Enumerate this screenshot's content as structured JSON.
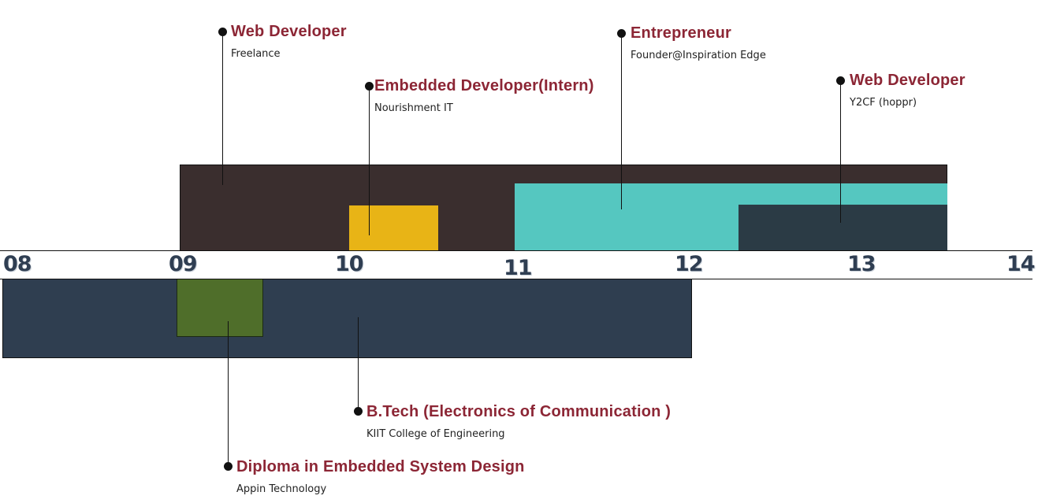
{
  "axis": {
    "ticks": [
      "08",
      "09",
      "10",
      "11",
      "12",
      "13",
      "14"
    ]
  },
  "colors": {
    "work_base": "#3a2e2e",
    "intern": "#e8b416",
    "entrepreneur": "#55c7c0",
    "y2cf": "#2b3b45",
    "btech": "#2f3e50",
    "diploma": "#4f6e2a",
    "title": "#8c2635"
  },
  "experience": [
    {
      "title": "Web Developer",
      "subtitle": "Freelance"
    },
    {
      "title": "Embedded Developer(Intern)",
      "subtitle": "Nourishment  IT"
    },
    {
      "title": "Entrepreneur",
      "subtitle": "Founder@Inspiration Edge"
    },
    {
      "title": "Web Developer",
      "subtitle": "Y2CF (hoppr)"
    }
  ],
  "education": [
    {
      "title": "B.Tech  (Electronics of Communication )",
      "subtitle": "KIIT College of Engineering"
    },
    {
      "title": "Diploma in Embedded System Design",
      "subtitle": "Appin Technology"
    }
  ]
}
